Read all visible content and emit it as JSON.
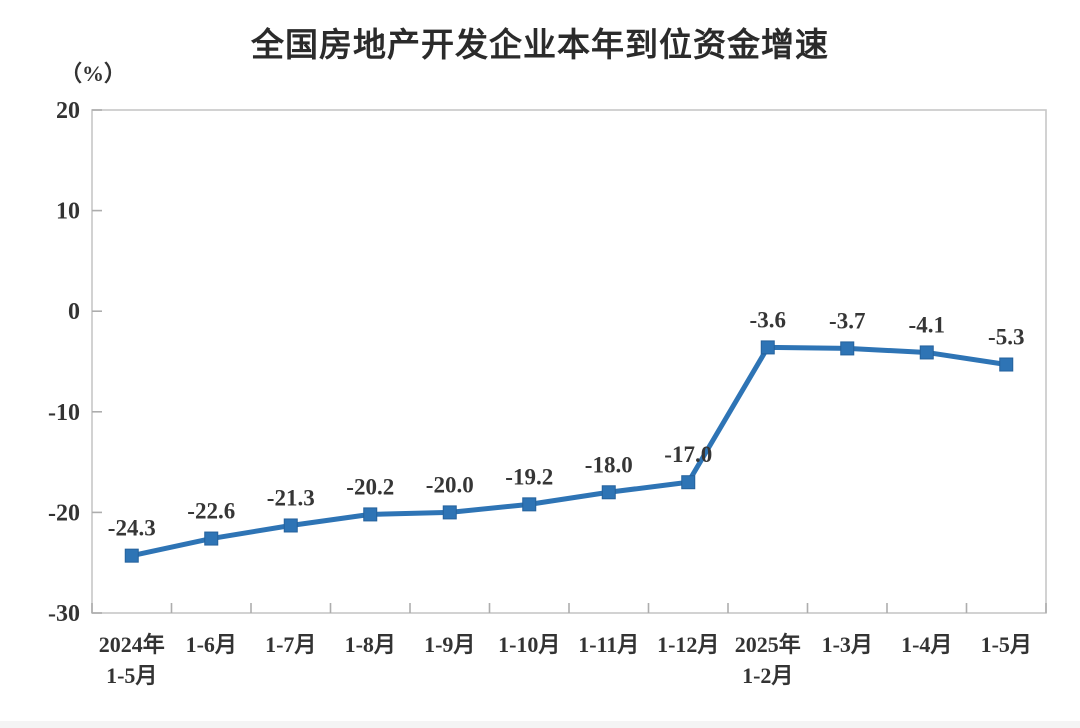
{
  "chart": {
    "title": "全国房地产开发企业本年到位资金增速",
    "unit_label": "（%）",
    "colors": {
      "line": "#2E74B5",
      "marker_fill": "#2E74B5",
      "marker_stroke": "#24619C",
      "axis_border": "#C7C7C7",
      "tick": "#ADADAD",
      "label_text": "#333333",
      "title_text": "#2B2B2B"
    }
  },
  "chart_data": {
    "type": "line",
    "title": "全国房地产开发企业本年到位资金增速",
    "ylabel": "（%）",
    "xlabel": "",
    "unit": "%",
    "categories": [
      "2024年\n1-5月",
      "1-6月",
      "1-7月",
      "1-8月",
      "1-9月",
      "1-10月",
      "1-11月",
      "1-12月",
      "2025年\n1-2月",
      "1-3月",
      "1-4月",
      "1-5月"
    ],
    "values": [
      -24.3,
      -22.6,
      -21.3,
      -20.2,
      -20.0,
      -19.2,
      -18.0,
      -17.0,
      -3.6,
      -3.7,
      -4.1,
      -5.3
    ],
    "data_labels": [
      "-24.3",
      "-22.6",
      "-21.3",
      "-20.2",
      "-20.0",
      "-19.2",
      "-18.0",
      "-17.0",
      "-3.6",
      "-3.7",
      "-4.1",
      "-5.3"
    ],
    "ylim": [
      -30,
      20
    ],
    "y_ticks": [
      20,
      10,
      0,
      -10,
      -20,
      -30
    ],
    "grid": false,
    "legend": "none",
    "marker": "square",
    "series": [
      {
        "name": "本年到位资金增速",
        "values": [
          -24.3,
          -22.6,
          -21.3,
          -20.2,
          -20.0,
          -19.2,
          -18.0,
          -17.0,
          -3.6,
          -3.7,
          -4.1,
          -5.3
        ]
      }
    ]
  }
}
